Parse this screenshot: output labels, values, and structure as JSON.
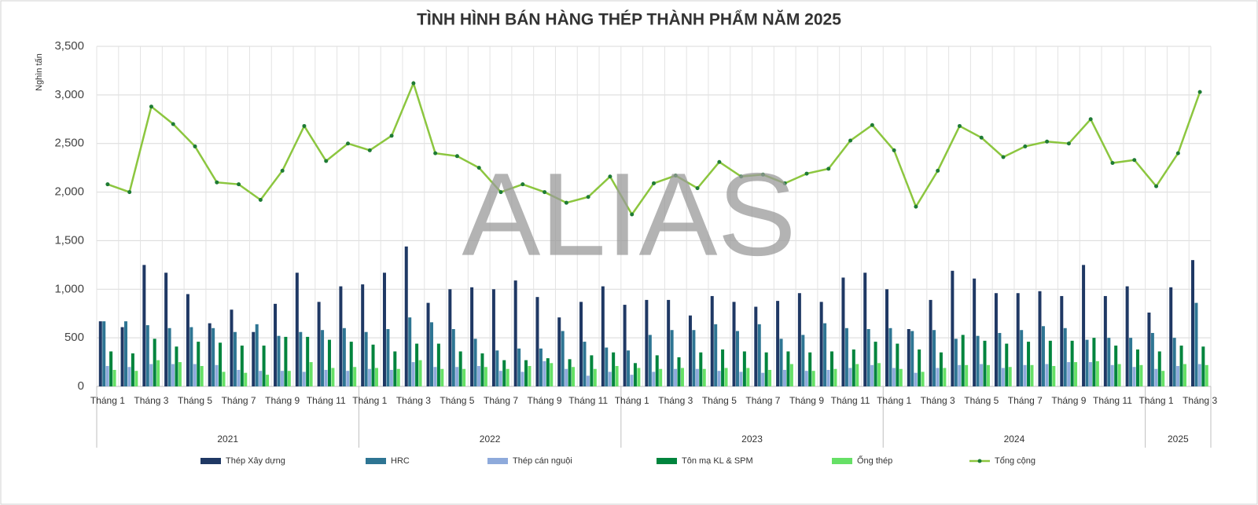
{
  "chart_data": {
    "type": "bar-line",
    "title": "TÌNH HÌNH BÁN HÀNG THÉP THÀNH PHẨM NĂM 2025",
    "y_label": "Nghìn tấn",
    "watermark": "ALIAS",
    "categories": [
      "Tháng 1",
      null,
      "Tháng 3",
      null,
      "Tháng 5",
      null,
      "Tháng 7",
      null,
      "Tháng 9",
      null,
      "Tháng 11",
      null,
      "Tháng 1",
      null,
      "Tháng 3",
      null,
      "Tháng 5",
      null,
      "Tháng 7",
      null,
      "Tháng 9",
      null,
      "Tháng 11",
      null,
      "Tháng 1",
      null,
      "Tháng 3",
      null,
      "Tháng 5",
      null,
      "Tháng 7",
      null,
      "Tháng 9",
      null,
      "Tháng 11",
      null,
      "Tháng 1",
      null,
      "Tháng 3",
      null,
      "Tháng 5",
      null,
      "Tháng 7",
      null,
      "Tháng 9",
      null,
      "Tháng 11",
      null,
      "Tháng 1",
      null,
      "Tháng 3"
    ],
    "groups": [
      "2021",
      "2022",
      "2023",
      "2024",
      "2025"
    ],
    "ylim": [
      0,
      3500
    ],
    "yticks": [
      0,
      500,
      {
        "value": 1000,
        "label": "1,000"
      },
      {
        "value": 1500,
        "label": "1,500"
      },
      {
        "value": 2000,
        "label": "2,000"
      },
      {
        "value": 2500,
        "label": "2,500"
      },
      {
        "value": 3000,
        "label": "3,000"
      },
      {
        "value": 3500,
        "label": "3,500"
      }
    ],
    "grid": true,
    "series": [
      {
        "name": "Thép Xây dựng",
        "type": "bar",
        "color": "#1f3864",
        "values": [
          670,
          610,
          1250,
          1170,
          950,
          650,
          790,
          560,
          850,
          1170,
          870,
          1030,
          1050,
          1170,
          1440,
          860,
          1000,
          1020,
          1000,
          1090,
          920,
          710,
          870,
          1030,
          840,
          890,
          890,
          730,
          930,
          870,
          820,
          880,
          960,
          870,
          1120,
          1170,
          1000,
          590,
          890,
          1190,
          1110,
          960,
          960,
          980,
          930,
          1250,
          930,
          1030,
          760,
          1020,
          1300
        ]
      },
      {
        "name": "HRC",
        "type": "bar",
        "color": "#2e7593",
        "values": [
          670,
          670,
          630,
          600,
          610,
          600,
          560,
          640,
          520,
          560,
          580,
          600,
          560,
          590,
          710,
          660,
          590,
          490,
          370,
          390,
          390,
          570,
          460,
          400,
          370,
          530,
          580,
          580,
          640,
          570,
          640,
          490,
          530,
          650,
          600,
          590,
          600,
          570,
          580,
          490,
          520,
          550,
          580,
          620,
          600,
          480,
          500,
          500,
          550,
          500,
          860
        ]
      },
      {
        "name": "Thép cán nguội",
        "type": "bar",
        "color": "#8eaadb",
        "values": [
          210,
          200,
          230,
          230,
          230,
          220,
          170,
          160,
          160,
          150,
          170,
          160,
          180,
          170,
          250,
          200,
          200,
          210,
          160,
          150,
          260,
          180,
          110,
          150,
          120,
          150,
          180,
          180,
          160,
          150,
          140,
          170,
          160,
          170,
          190,
          220,
          190,
          140,
          190,
          220,
          230,
          190,
          220,
          230,
          250,
          250,
          220,
          200,
          180,
          210,
          230
        ]
      },
      {
        "name": "Tôn mạ KL & SPM",
        "type": "bar",
        "color": "#00843d",
        "values": [
          360,
          340,
          490,
          410,
          460,
          450,
          420,
          420,
          510,
          510,
          480,
          460,
          430,
          360,
          440,
          440,
          360,
          340,
          270,
          270,
          290,
          280,
          320,
          350,
          240,
          320,
          300,
          350,
          380,
          360,
          350,
          360,
          350,
          360,
          380,
          460,
          440,
          380,
          350,
          530,
          470,
          440,
          460,
          470,
          470,
          500,
          420,
          380,
          360,
          420,
          410
        ]
      },
      {
        "name": "Ống thép",
        "type": "bar",
        "color": "#66e066",
        "values": [
          170,
          160,
          270,
          250,
          210,
          150,
          140,
          120,
          160,
          250,
          190,
          200,
          190,
          180,
          270,
          180,
          180,
          200,
          180,
          210,
          240,
          200,
          180,
          210,
          190,
          180,
          190,
          180,
          190,
          190,
          170,
          230,
          160,
          180,
          230,
          240,
          180,
          150,
          190,
          220,
          220,
          200,
          220,
          210,
          250,
          260,
          230,
          220,
          160,
          230,
          220
        ]
      },
      {
        "name": "Tổng cộng",
        "type": "line",
        "color": "#8cc63f",
        "marker_color": "#1e7b34",
        "values": [
          2080,
          2000,
          2880,
          2700,
          2470,
          2100,
          2080,
          1920,
          2220,
          2680,
          2320,
          2500,
          2430,
          2580,
          3120,
          2400,
          2370,
          2250,
          2000,
          2080,
          2000,
          1890,
          1950,
          2160,
          1770,
          2090,
          2170,
          2040,
          2310,
          2160,
          2180,
          2090,
          2190,
          2240,
          2530,
          2690,
          2430,
          1850,
          2220,
          2680,
          2560,
          2360,
          2470,
          2520,
          2500,
          2750,
          2300,
          2330,
          2060,
          2400,
          3030
        ]
      }
    ]
  }
}
